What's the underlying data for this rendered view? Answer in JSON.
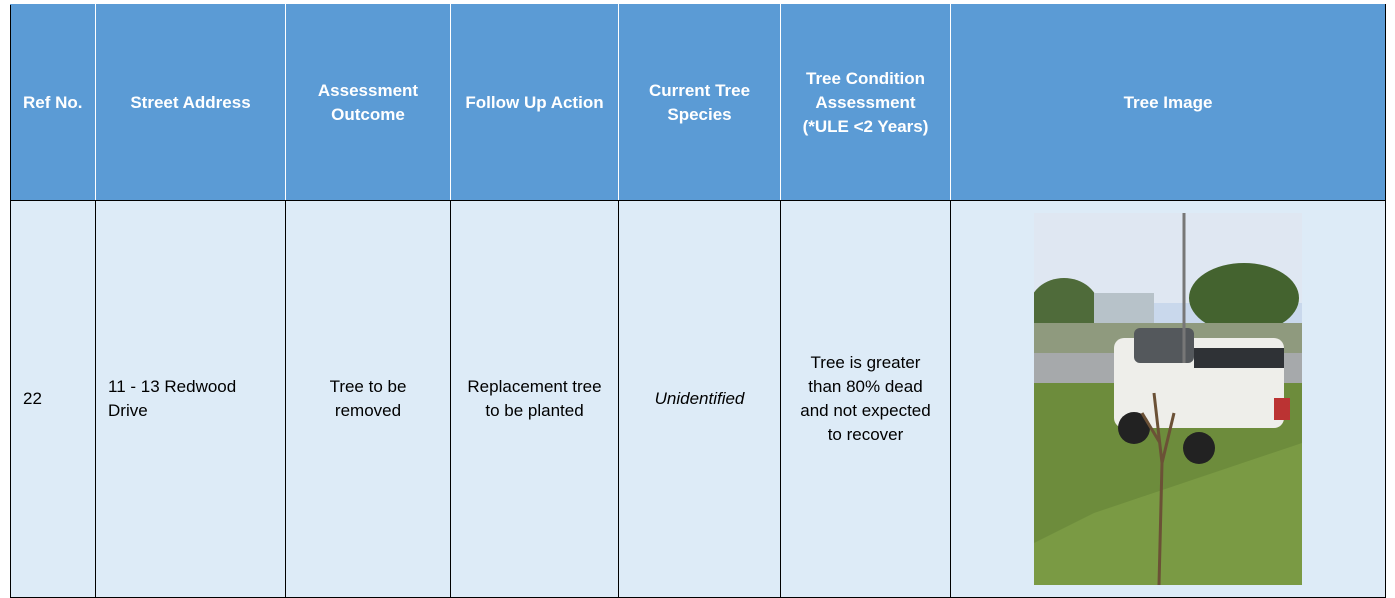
{
  "table": {
    "headers": [
      "Ref No.",
      "Street Address",
      "Assessment Outcome",
      "Follow Up Action",
      "Current Tree Species",
      "Tree Condition Assessment (*ULE <2 Years)",
      "Tree Image"
    ],
    "rows": [
      [
        "22",
        "11 - 13 Redwood Drive",
        "Tree to be removed",
        "Replacement tree to be planted",
        "Unidentified",
        "Tree is greater than 80% dead and not expected to recover"
      ]
    ]
  }
}
